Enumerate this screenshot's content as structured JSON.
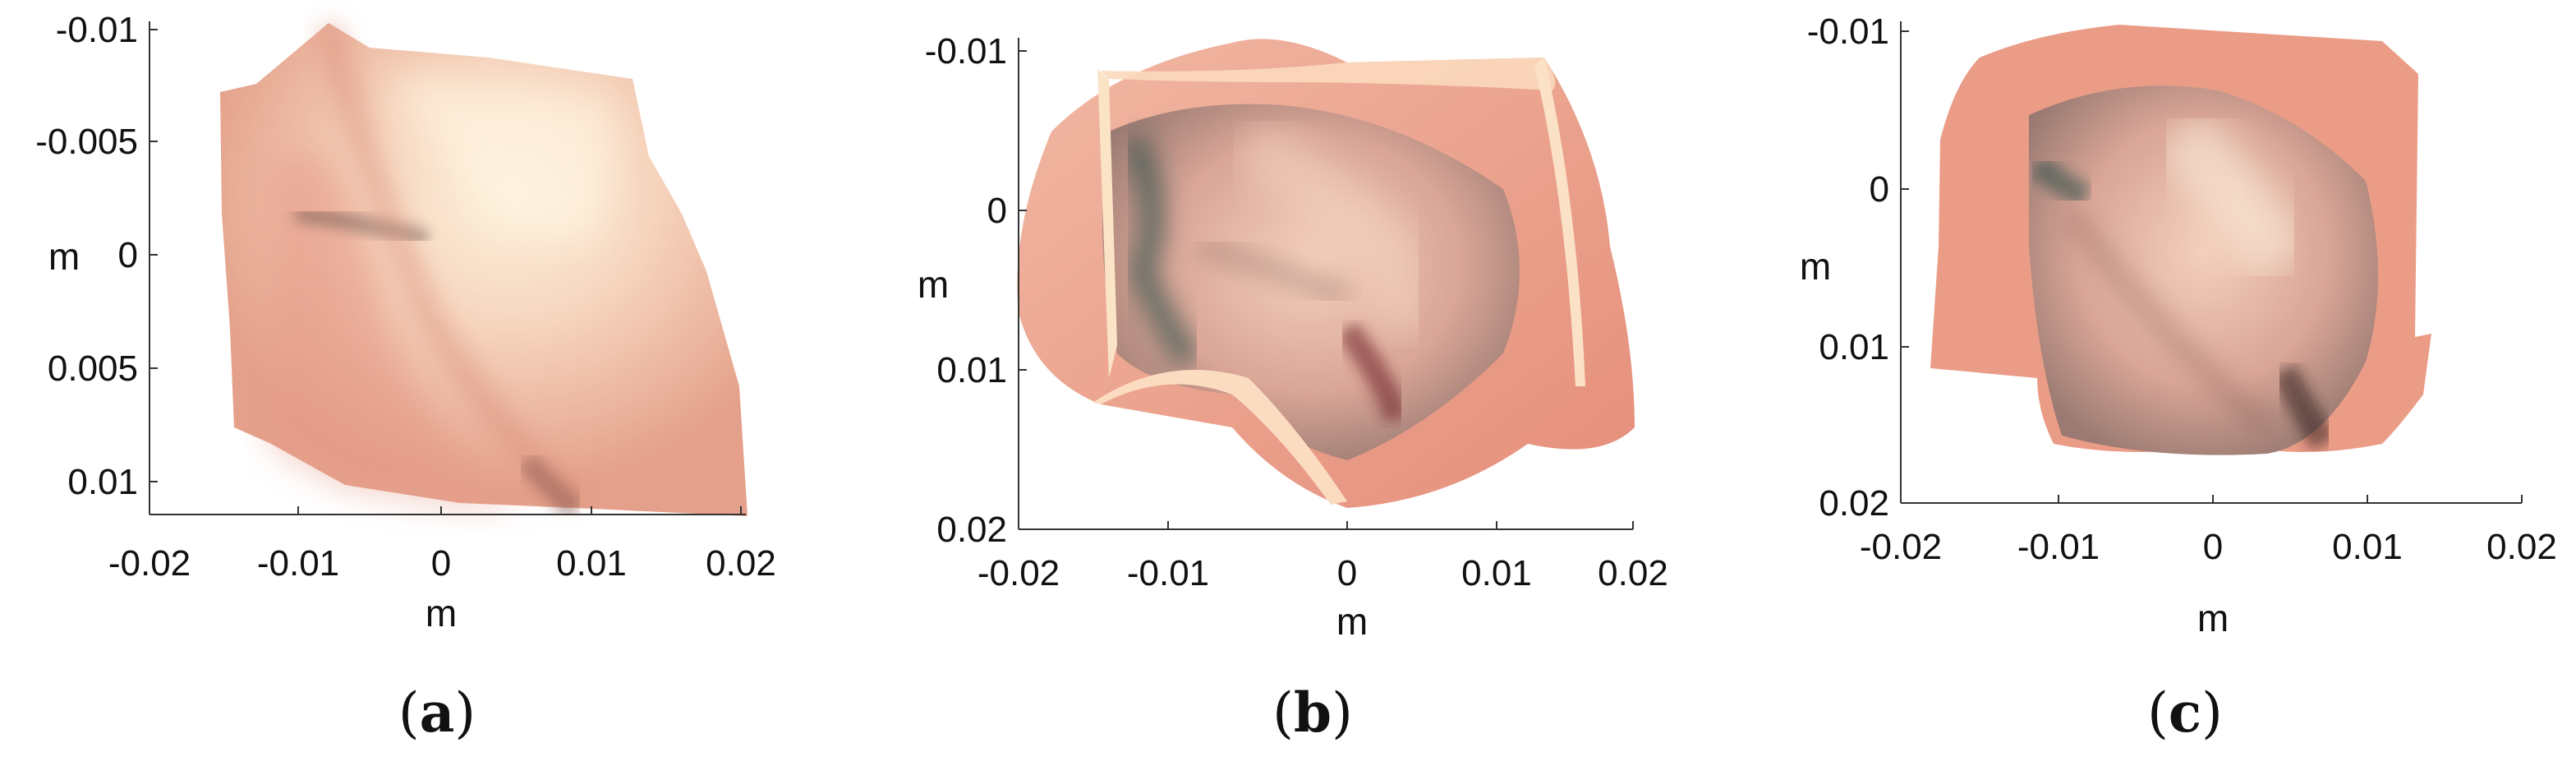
{
  "chart_data": [
    {
      "type": "surface",
      "caption": "a",
      "xlabel": "m",
      "ylabel": "m",
      "xlim": [
        -0.02,
        0.02
      ],
      "ylim": [
        -0.01,
        0.01
      ],
      "y_reversed": true,
      "xticks": [
        "-0.02",
        "-0.01",
        "0",
        "0.01",
        "0.02"
      ],
      "yticks": [
        "-0.01",
        "-0.005",
        "0",
        "0.005",
        "0.01"
      ],
      "colors": {
        "light": "#fbe7cd",
        "mid": "#e9a08c",
        "dark": "#2f4a45"
      }
    },
    {
      "type": "surface",
      "caption": "b",
      "xlabel": "m",
      "ylabel": "m",
      "xlim": [
        -0.02,
        0.02
      ],
      "ylim": [
        -0.01,
        0.02
      ],
      "y_reversed": true,
      "xticks": [
        "-0.02",
        "-0.01",
        "0",
        "0.01",
        "0.02"
      ],
      "yticks": [
        "-0.01",
        "0",
        "0.01",
        "0.02"
      ],
      "colors": {
        "light": "#fbe7cd",
        "mid": "#e59a87",
        "dark": "#1f4a44"
      }
    },
    {
      "type": "surface",
      "caption": "c",
      "xlabel": "m",
      "ylabel": "m",
      "xlim": [
        -0.02,
        0.02
      ],
      "ylim": [
        -0.01,
        0.02
      ],
      "y_reversed": true,
      "xticks": [
        "-0.02",
        "-0.01",
        "0",
        "0.01",
        "0.02"
      ],
      "yticks": [
        "-0.01",
        "0",
        "0.01",
        "0.02"
      ],
      "colors": {
        "light": "#fbe7cd",
        "mid": "#e59a87",
        "dark": "#1f4a44"
      }
    }
  ]
}
